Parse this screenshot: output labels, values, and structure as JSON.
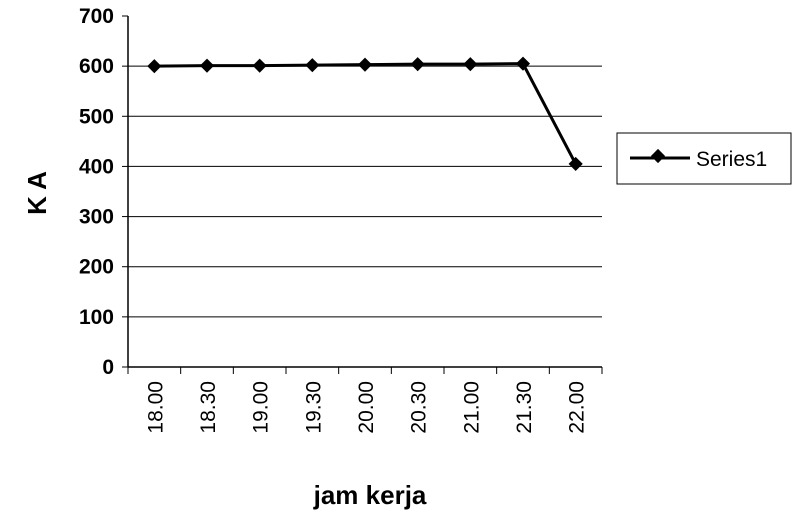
{
  "chart_data": {
    "type": "line",
    "categories": [
      "18.00",
      "18.30",
      "19.00",
      "19.30",
      "20.00",
      "20.30",
      "21.00",
      "21.30",
      "22.00"
    ],
    "series": [
      {
        "name": "Series1",
        "values": [
          600,
          601,
          601,
          602,
          603,
          604,
          604,
          605,
          405
        ]
      }
    ],
    "xlabel": "jam kerja",
    "ylabel": "K A",
    "ylim": [
      0,
      700
    ],
    "yticks": [
      "0",
      "100",
      "200",
      "300",
      "400",
      "500",
      "600",
      "700"
    ],
    "grid": true,
    "legend": "right",
    "colors": {
      "line": "#000000",
      "grid": "#000000",
      "axis": "#000000"
    }
  }
}
